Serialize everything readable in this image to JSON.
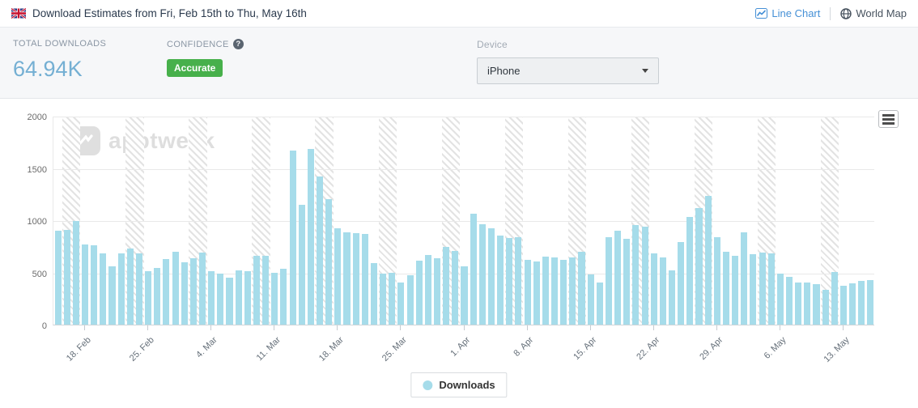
{
  "header": {
    "flag_icon": "uk-flag",
    "title": "Download Estimates from Fri, Feb 15th to Thu, May 16th",
    "view_links": [
      {
        "label": "Line Chart",
        "icon": "line-chart-icon",
        "active": true,
        "color": "#4590d6"
      },
      {
        "label": "World Map",
        "icon": "globe-icon",
        "active": false,
        "color": "#47525e"
      }
    ]
  },
  "stats": {
    "total": {
      "label": "TOTAL DOWNLOADS",
      "value": "64.94K"
    },
    "confidence": {
      "label": "CONFIDENCE",
      "badge": "Accurate",
      "badge_color": "#47b04b"
    },
    "device": {
      "label": "Device",
      "value": "iPhone"
    }
  },
  "chart_data": {
    "type": "bar",
    "title": "Download Estimates",
    "x_start": "Fri, Feb 15",
    "x_end": "Thu, May 16",
    "ylim": [
      0,
      2000
    ],
    "yticks": [
      0,
      500,
      1000,
      1500,
      2000
    ],
    "grid": true,
    "legend_position": "bottom",
    "watermark": "apptweak",
    "x_tick_labels": [
      "18. Feb",
      "25. Feb",
      "4. Mar",
      "11. Mar",
      "18. Mar",
      "25. Mar",
      "1. Apr",
      "8. Apr",
      "15. Apr",
      "22. Apr",
      "29. Apr",
      "6. May",
      "13. May"
    ],
    "x_tick_indices": [
      3,
      10,
      17,
      24,
      31,
      38,
      45,
      52,
      59,
      66,
      73,
      80,
      87
    ],
    "weekend_band_start_indices": [
      1,
      8,
      15,
      22,
      29,
      36,
      43,
      50,
      57,
      64,
      71,
      78,
      85
    ],
    "series": [
      {
        "name": "Downloads",
        "color": "#a6dcea",
        "values": [
          900,
          905,
          990,
          770,
          760,
          680,
          555,
          680,
          730,
          685,
          515,
          540,
          625,
          700,
          595,
          635,
          690,
          515,
          485,
          450,
          520,
          515,
          660,
          660,
          495,
          535,
          1665,
          1150,
          1685,
          1420,
          1205,
          920,
          880,
          875,
          870,
          590,
          485,
          500,
          400,
          470,
          610,
          665,
          635,
          745,
          705,
          560,
          1060,
          965,
          925,
          850,
          830,
          840,
          620,
          605,
          655,
          645,
          620,
          640,
          700,
          480,
          400,
          840,
          900,
          825,
          950,
          940,
          680,
          640,
          520,
          790,
          1030,
          1115,
          1230,
          835,
          700,
          660,
          885,
          675,
          690,
          680,
          485,
          460,
          400,
          400,
          390,
          330,
          505,
          375,
          395,
          415,
          430
        ]
      }
    ]
  }
}
